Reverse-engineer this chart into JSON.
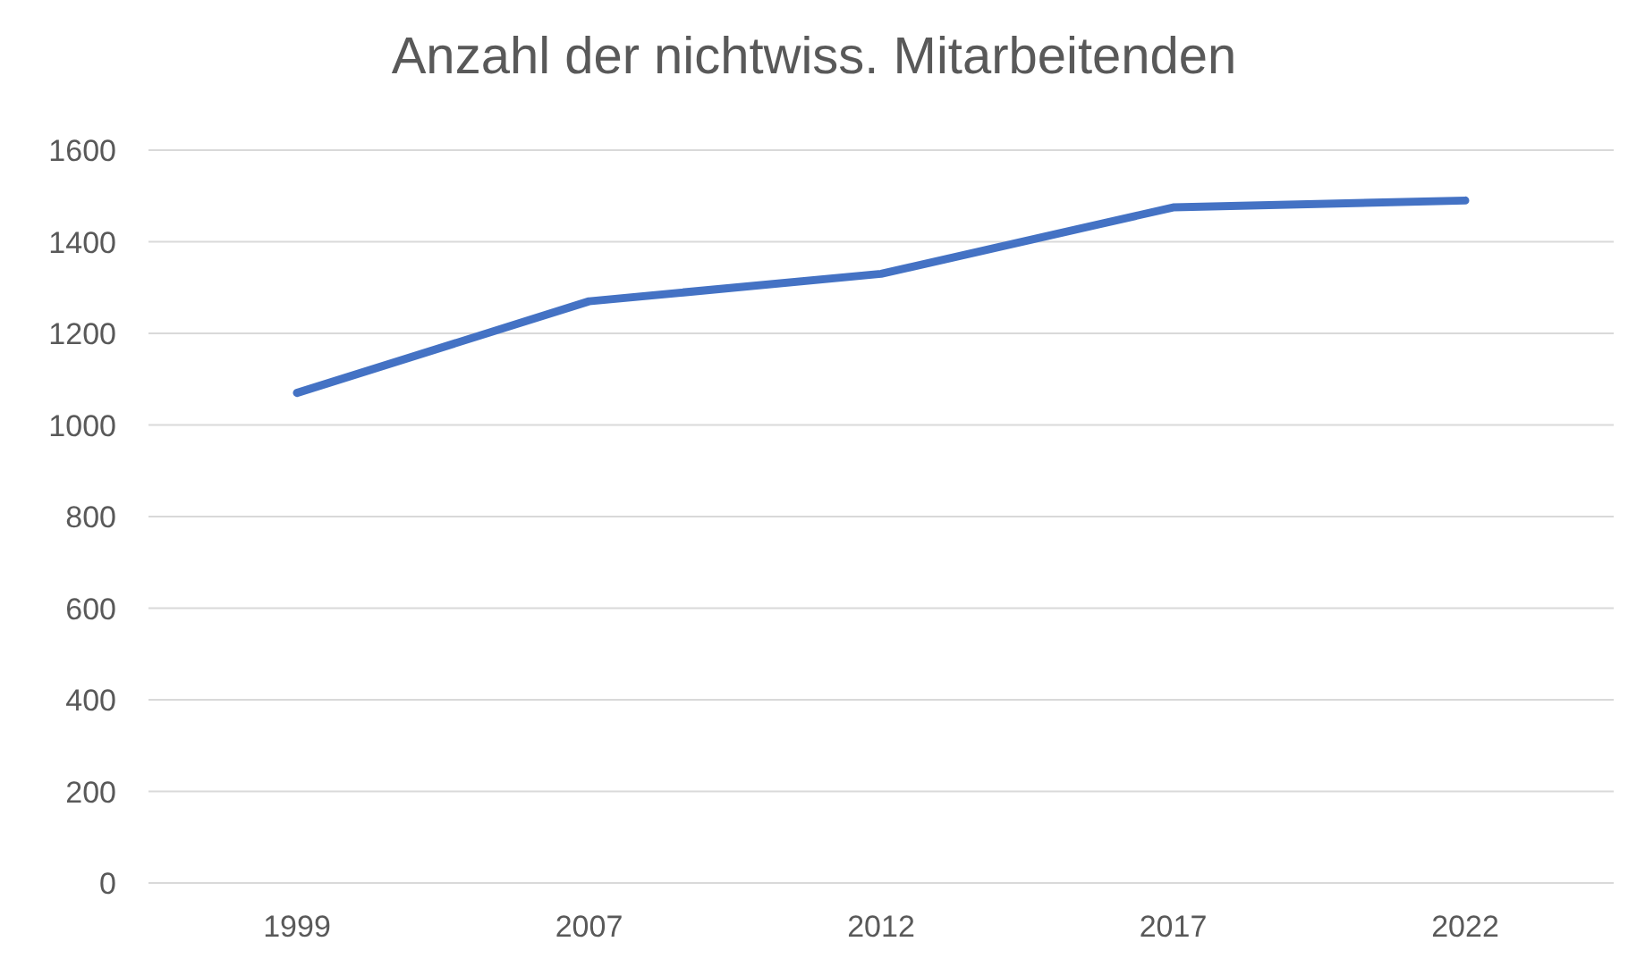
{
  "chart_data": {
    "type": "line",
    "title": "Anzahl der nichtwiss. Mitarbeitenden",
    "categories": [
      "1999",
      "2007",
      "2012",
      "2017",
      "2022"
    ],
    "series": [
      {
        "color": "#4472c4",
        "values": [
          1070,
          1270,
          1330,
          1475,
          1490
        ]
      }
    ],
    "ylim": [
      0,
      1600
    ],
    "yticks": [
      0,
      200,
      400,
      600,
      800,
      1000,
      1200,
      1400,
      1600
    ],
    "grid": "y",
    "legend": false,
    "marker": "none",
    "line_style": "solid"
  }
}
